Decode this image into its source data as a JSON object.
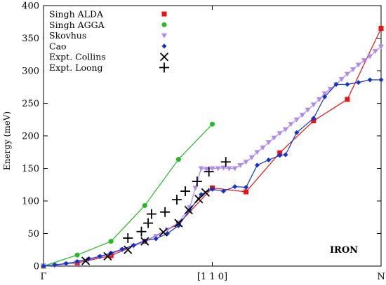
{
  "chart_data": {
    "type": "line",
    "title": "",
    "xlabel": "",
    "ylabel": "Energy (meV)",
    "xlim": [
      0,
      1.0
    ],
    "ylim": [
      0,
      400
    ],
    "y_ticks": [
      0,
      50,
      100,
      150,
      200,
      250,
      300,
      350,
      400
    ],
    "x_tick_labels": [
      {
        "x": 0,
        "label": "Γ"
      },
      {
        "x": 0.5,
        "label": "[1 1 0]"
      },
      {
        "x": 1.0,
        "label": "N"
      }
    ],
    "legend_position": "top-left",
    "annotation": "IRON",
    "grid": false,
    "series": [
      {
        "name": "Singh ALDA",
        "color": "#ee1111",
        "marker": "square",
        "line": true,
        "points": [
          [
            0,
            0
          ],
          [
            0.1,
            5
          ],
          [
            0.2,
            16
          ],
          [
            0.3,
            38
          ],
          [
            0.4,
            65
          ],
          [
            0.5,
            120
          ],
          [
            0.6,
            114
          ],
          [
            0.7,
            174
          ],
          [
            0.8,
            223
          ],
          [
            0.9,
            256
          ],
          [
            1.0,
            365
          ]
        ]
      },
      {
        "name": "Singh AGGA",
        "color": "#22bb22",
        "marker": "circle",
        "line": true,
        "points": [
          [
            0,
            0
          ],
          [
            0.1,
            17
          ],
          [
            0.2,
            38
          ],
          [
            0.3,
            93
          ],
          [
            0.4,
            164
          ],
          [
            0.5,
            218
          ]
        ]
      },
      {
        "name": "Skovhus",
        "color": "#b088ee",
        "marker": "triangle-down",
        "line": true,
        "points": [
          [
            0,
            0
          ],
          [
            0.033,
            1
          ],
          [
            0.067,
            3
          ],
          [
            0.1,
            6
          ],
          [
            0.133,
            10
          ],
          [
            0.167,
            14
          ],
          [
            0.2,
            19
          ],
          [
            0.233,
            25
          ],
          [
            0.267,
            31
          ],
          [
            0.3,
            38
          ],
          [
            0.333,
            46
          ],
          [
            0.367,
            56
          ],
          [
            0.4,
            67
          ],
          [
            0.433,
            90
          ],
          [
            0.45,
            120
          ],
          [
            0.467,
            150
          ],
          [
            0.483,
            149
          ],
          [
            0.5,
            150
          ],
          [
            0.517,
            150
          ],
          [
            0.533,
            151
          ],
          [
            0.55,
            150
          ],
          [
            0.567,
            150
          ],
          [
            0.583,
            155
          ],
          [
            0.6,
            160
          ],
          [
            0.617,
            167
          ],
          [
            0.633,
            175
          ],
          [
            0.65,
            182
          ],
          [
            0.667,
            190
          ],
          [
            0.683,
            197
          ],
          [
            0.7,
            204
          ],
          [
            0.717,
            210
          ],
          [
            0.733,
            218
          ],
          [
            0.75,
            225
          ],
          [
            0.767,
            232
          ],
          [
            0.783,
            240
          ],
          [
            0.8,
            248
          ],
          [
            0.817,
            256
          ],
          [
            0.833,
            265
          ],
          [
            0.85,
            272
          ],
          [
            0.867,
            279
          ],
          [
            0.883,
            287
          ],
          [
            0.9,
            295
          ],
          [
            0.917,
            302
          ],
          [
            0.933,
            309
          ],
          [
            0.95,
            316
          ],
          [
            0.967,
            322
          ],
          [
            0.983,
            330
          ],
          [
            1.0,
            337
          ]
        ]
      },
      {
        "name": "Cao",
        "color": "#1133cc",
        "marker": "diamond",
        "line": true,
        "points": [
          [
            0,
            0
          ],
          [
            0.033,
            2
          ],
          [
            0.067,
            4
          ],
          [
            0.1,
            7
          ],
          [
            0.133,
            11
          ],
          [
            0.167,
            15
          ],
          [
            0.2,
            20
          ],
          [
            0.233,
            26
          ],
          [
            0.267,
            32
          ],
          [
            0.3,
            39
          ],
          [
            0.333,
            42
          ],
          [
            0.367,
            50
          ],
          [
            0.4,
            62
          ],
          [
            0.433,
            86
          ],
          [
            0.467,
            110
          ],
          [
            0.5,
            118
          ],
          [
            0.533,
            115
          ],
          [
            0.567,
            122
          ],
          [
            0.6,
            121
          ],
          [
            0.633,
            155
          ],
          [
            0.667,
            163
          ],
          [
            0.7,
            170
          ],
          [
            0.717,
            171
          ],
          [
            0.75,
            205
          ],
          [
            0.8,
            227
          ],
          [
            0.833,
            260
          ],
          [
            0.867,
            279
          ],
          [
            0.9,
            279
          ],
          [
            0.933,
            282
          ],
          [
            0.967,
            286
          ],
          [
            1.0,
            286
          ]
        ]
      },
      {
        "name": "Expt. Collins",
        "color": "#000000",
        "marker": "x",
        "line": false,
        "points": [
          [
            0.125,
            8
          ],
          [
            0.19,
            15
          ],
          [
            0.25,
            25
          ],
          [
            0.3,
            38
          ],
          [
            0.355,
            52
          ],
          [
            0.4,
            66
          ],
          [
            0.43,
            86
          ],
          [
            0.46,
            103
          ],
          [
            0.48,
            113
          ]
        ]
      },
      {
        "name": "Expt. Loong",
        "color": "#000000",
        "marker": "plus",
        "line": false,
        "points": [
          [
            0.25,
            43
          ],
          [
            0.29,
            53
          ],
          [
            0.31,
            66
          ],
          [
            0.32,
            80
          ],
          [
            0.36,
            83
          ],
          [
            0.395,
            102
          ],
          [
            0.42,
            115
          ],
          [
            0.455,
            130
          ],
          [
            0.49,
            145
          ],
          [
            0.54,
            160
          ]
        ]
      }
    ]
  }
}
